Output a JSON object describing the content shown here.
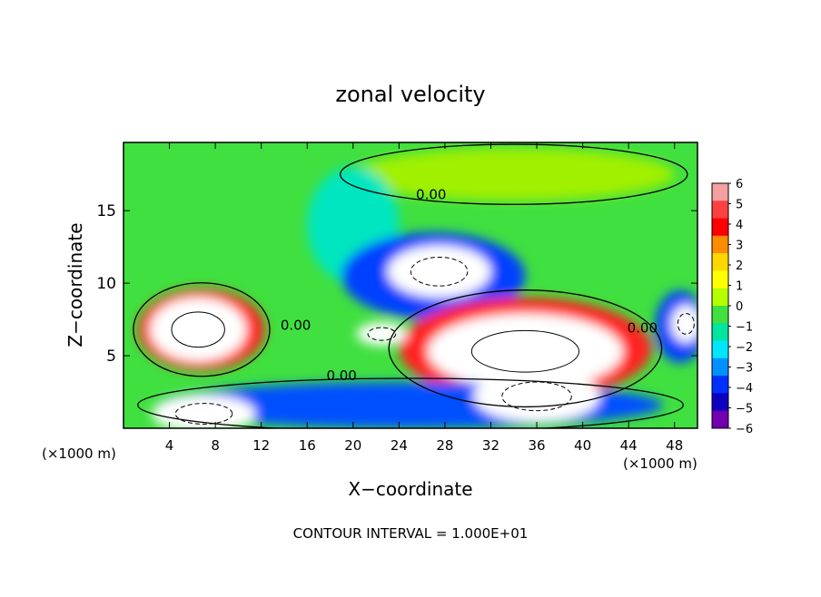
{
  "chart_data": {
    "type": "heatmap",
    "title": "zonal velocity",
    "xlabel": "X−coordinate",
    "ylabel": "Z−coordinate",
    "x_unit_left": "(×1000 m)",
    "x_unit_right": "(×1000 m)",
    "footer": "CONTOUR INTERVAL = 1.000E+01",
    "xlim": [
      0,
      50
    ],
    "ylim": [
      0,
      19.7
    ],
    "x_ticks": [
      4,
      8,
      12,
      16,
      20,
      24,
      28,
      32,
      36,
      40,
      44,
      48
    ],
    "x_tick_labels": [
      "4",
      "8",
      "12",
      "16",
      "20",
      "24",
      "28",
      "32",
      "36",
      "40",
      "44",
      "48"
    ],
    "y_ticks": [
      5,
      10,
      15
    ],
    "y_tick_labels": [
      "5",
      "10",
      "15"
    ],
    "colorbar": {
      "range": [
        -6,
        6
      ],
      "levels": [
        6,
        5,
        4,
        3,
        2,
        1,
        0,
        -1,
        -2,
        -3,
        -4,
        -5,
        -6
      ],
      "labels": [
        "6",
        "5",
        "4",
        "3",
        "2",
        "1",
        "0",
        "−1",
        "−2",
        "−3",
        "−4",
        "−5",
        "−6"
      ],
      "colors": [
        "#f4a0a0",
        "#ff4040",
        "#ff0000",
        "#ff8c00",
        "#ffd700",
        "#ffff00",
        "#b4ff00",
        "#40e040",
        "#00e6a0",
        "#00e6ff",
        "#0090ff",
        "#0030ff",
        "#1000c0",
        "#7000b0"
      ]
    },
    "background_color": "#40e040",
    "regions": [
      {
        "name": "upper-light-green",
        "value": 0.6,
        "color": "#a0f000",
        "cx": 34,
        "cy": 17.5,
        "rx": 14,
        "ry": 1.8
      },
      {
        "name": "upper-cyan-tongue",
        "value": -1.5,
        "color": "#00e6c0",
        "cx": 20,
        "cy": 14,
        "rx": 4,
        "ry": 4
      },
      {
        "name": "central-blue-lobe",
        "value": -4,
        "color": "#0040ff",
        "cx": 27,
        "cy": 10.5,
        "rx": 8,
        "ry": 3
      },
      {
        "name": "central-white-core",
        "value": -8,
        "color": "#ffffff",
        "cx": 27.5,
        "cy": 10.8,
        "rx": 4.5,
        "ry": 1.8
      },
      {
        "name": "left-red-ring",
        "value": 4,
        "color": "#ff2020",
        "cx": 6.8,
        "cy": 6.8,
        "rx": 5.5,
        "ry": 2.8
      },
      {
        "name": "left-white-core",
        "value": 8,
        "color": "#ffffff",
        "cx": 6.5,
        "cy": 6.8,
        "rx": 4.2,
        "ry": 2.2
      },
      {
        "name": "right-red-band",
        "value": 4,
        "color": "#ff2020",
        "cx": 35,
        "cy": 5.5,
        "rx": 11,
        "ry": 3.5
      },
      {
        "name": "right-white-core",
        "value": 8,
        "color": "#ffffff",
        "cx": 35,
        "cy": 5.3,
        "rx": 8.5,
        "ry": 2.6
      },
      {
        "name": "lower-blue-band",
        "value": -4,
        "color": "#0050ff",
        "cx": 25,
        "cy": 1.6,
        "rx": 22,
        "ry": 1.6
      },
      {
        "name": "lower-white-core-left",
        "value": -8,
        "color": "#ffffff",
        "cx": 7,
        "cy": 1,
        "rx": 4.5,
        "ry": 1.3
      },
      {
        "name": "lower-white-core-right",
        "value": -8,
        "color": "#ffffff",
        "cx": 36,
        "cy": 2.2,
        "rx": 5.5,
        "ry": 1.8
      },
      {
        "name": "right-edge-blue",
        "value": -4,
        "color": "#0040ff",
        "cx": 48.5,
        "cy": 7,
        "rx": 2.2,
        "ry": 2.5
      },
      {
        "name": "right-edge-white",
        "value": -8,
        "color": "#ffffff",
        "cx": 49,
        "cy": 7.2,
        "rx": 1.3,
        "ry": 1.3
      },
      {
        "name": "mid-white-streak",
        "value": -8,
        "color": "#ffffff",
        "cx": 22.5,
        "cy": 6.5,
        "rx": 2.2,
        "ry": 0.8
      }
    ],
    "zero_contour_labels": [
      {
        "text": "0.00",
        "x": 26.8,
        "y": 15.8
      },
      {
        "text": "0.00",
        "x": 19,
        "y": 3.3
      },
      {
        "text": "0.00",
        "x": 15,
        "y": 6.8
      },
      {
        "text": "0.00",
        "x": 45.2,
        "y": 6.6
      }
    ]
  }
}
